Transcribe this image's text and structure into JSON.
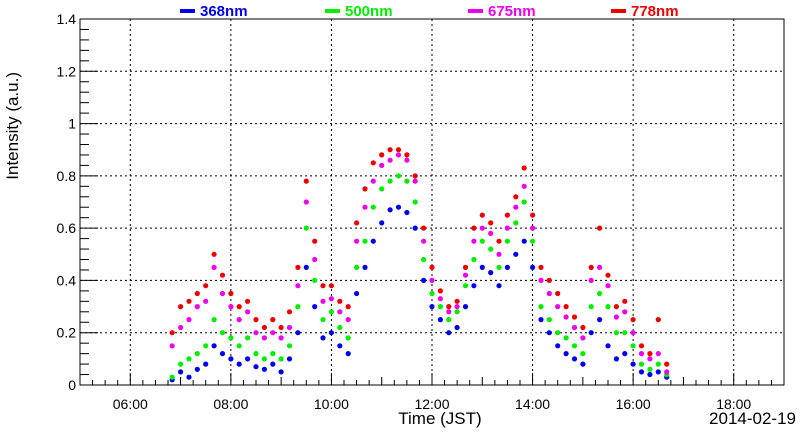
{
  "chart_data": {
    "type": "scatter",
    "xlabel": "Time (JST)",
    "ylabel": "Intensity (a.u.)",
    "date_label": "2014-02-19",
    "xlim": [
      "05:00",
      "19:00"
    ],
    "ylim": [
      0,
      1.4
    ],
    "x_ticks": [
      "06:00",
      "08:00",
      "10:00",
      "12:00",
      "14:00",
      "16:00",
      "18:00"
    ],
    "y_ticks": [
      "0",
      "0.2",
      "0.4",
      "0.6",
      "0.8",
      "1",
      "1.2",
      "1.4"
    ],
    "grid": true,
    "legend_position": "top",
    "series": [
      {
        "name": "368nm",
        "color": "#0000ee",
        "x": [
          "06:50",
          "07:00",
          "07:10",
          "07:20",
          "07:30",
          "07:40",
          "07:50",
          "08:00",
          "08:10",
          "08:20",
          "08:30",
          "08:40",
          "08:50",
          "09:00",
          "09:10",
          "09:20",
          "09:30",
          "09:40",
          "09:50",
          "10:00",
          "10:10",
          "10:20",
          "10:30",
          "10:40",
          "10:50",
          "11:00",
          "11:10",
          "11:20",
          "11:30",
          "11:40",
          "11:50",
          "12:00",
          "12:10",
          "12:20",
          "12:30",
          "12:40",
          "12:50",
          "13:00",
          "13:10",
          "13:20",
          "13:30",
          "13:40",
          "13:50",
          "14:00",
          "14:10",
          "14:20",
          "14:30",
          "14:40",
          "14:50",
          "15:00",
          "15:10",
          "15:20",
          "15:30",
          "15:40",
          "15:50",
          "16:00",
          "16:10",
          "16:20",
          "16:30",
          "16:40"
        ],
        "values": [
          0.02,
          0.05,
          0.03,
          0.06,
          0.08,
          0.15,
          0.12,
          0.1,
          0.08,
          0.1,
          0.07,
          0.06,
          0.08,
          0.05,
          0.1,
          0.2,
          0.45,
          0.3,
          0.18,
          0.2,
          0.15,
          0.12,
          0.35,
          0.45,
          0.55,
          0.62,
          0.67,
          0.68,
          0.66,
          0.6,
          0.4,
          0.3,
          0.25,
          0.2,
          0.22,
          0.3,
          0.38,
          0.45,
          0.43,
          0.38,
          0.45,
          0.5,
          0.55,
          0.45,
          0.25,
          0.2,
          0.15,
          0.12,
          0.1,
          0.08,
          0.2,
          0.25,
          0.15,
          0.1,
          0.12,
          0.08,
          0.05,
          0.04,
          0.05,
          0.03
        ]
      },
      {
        "name": "500nm",
        "color": "#00ee00",
        "x": [
          "06:50",
          "07:00",
          "07:10",
          "07:20",
          "07:30",
          "07:40",
          "07:50",
          "08:00",
          "08:10",
          "08:20",
          "08:30",
          "08:40",
          "08:50",
          "09:00",
          "09:10",
          "09:20",
          "09:30",
          "09:40",
          "09:50",
          "10:00",
          "10:10",
          "10:20",
          "10:30",
          "10:40",
          "10:50",
          "11:00",
          "11:10",
          "11:20",
          "11:30",
          "11:40",
          "11:50",
          "12:00",
          "12:10",
          "12:20",
          "12:30",
          "12:40",
          "12:50",
          "13:00",
          "13:10",
          "13:20",
          "13:30",
          "13:40",
          "13:50",
          "14:00",
          "14:10",
          "14:20",
          "14:30",
          "14:40",
          "14:50",
          "15:00",
          "15:10",
          "15:20",
          "15:30",
          "15:40",
          "15:50",
          "16:00",
          "16:10",
          "16:20",
          "16:30",
          "16:40"
        ],
        "values": [
          0.03,
          0.08,
          0.1,
          0.12,
          0.15,
          0.25,
          0.2,
          0.18,
          0.15,
          0.18,
          0.12,
          0.1,
          0.12,
          0.1,
          0.15,
          0.3,
          0.6,
          0.4,
          0.25,
          0.28,
          0.22,
          0.18,
          0.45,
          0.55,
          0.68,
          0.75,
          0.78,
          0.8,
          0.78,
          0.7,
          0.48,
          0.35,
          0.3,
          0.25,
          0.28,
          0.38,
          0.48,
          0.55,
          0.52,
          0.45,
          0.55,
          0.62,
          0.7,
          0.55,
          0.3,
          0.25,
          0.2,
          0.18,
          0.15,
          0.12,
          0.3,
          0.35,
          0.3,
          0.2,
          0.2,
          0.15,
          0.08,
          0.06,
          0.08,
          0.04
        ]
      },
      {
        "name": "675nm",
        "color": "#ee00ee",
        "x": [
          "06:50",
          "07:00",
          "07:10",
          "07:20",
          "07:30",
          "07:40",
          "07:50",
          "08:00",
          "08:10",
          "08:20",
          "08:30",
          "08:40",
          "08:50",
          "09:00",
          "09:10",
          "09:20",
          "09:30",
          "09:40",
          "09:50",
          "10:00",
          "10:10",
          "10:20",
          "10:30",
          "10:40",
          "10:50",
          "11:00",
          "11:10",
          "11:20",
          "11:30",
          "11:40",
          "11:50",
          "12:00",
          "12:10",
          "12:20",
          "12:30",
          "12:40",
          "12:50",
          "13:00",
          "13:10",
          "13:20",
          "13:30",
          "13:40",
          "13:50",
          "14:00",
          "14:10",
          "14:20",
          "14:30",
          "14:40",
          "14:50",
          "15:00",
          "15:10",
          "15:20",
          "15:30",
          "15:40",
          "15:50",
          "16:00",
          "16:10",
          "16:20",
          "16:30",
          "16:40"
        ],
        "values": [
          0.15,
          0.22,
          0.25,
          0.3,
          0.32,
          0.45,
          0.35,
          0.3,
          0.25,
          0.28,
          0.2,
          0.18,
          0.2,
          0.18,
          0.22,
          0.38,
          0.7,
          0.48,
          0.32,
          0.33,
          0.28,
          0.25,
          0.55,
          0.68,
          0.78,
          0.84,
          0.86,
          0.88,
          0.86,
          0.78,
          0.55,
          0.4,
          0.33,
          0.28,
          0.3,
          0.42,
          0.55,
          0.6,
          0.58,
          0.5,
          0.6,
          0.68,
          0.76,
          0.6,
          0.4,
          0.35,
          0.3,
          0.26,
          0.22,
          0.18,
          0.4,
          0.45,
          0.38,
          0.26,
          0.28,
          0.2,
          0.12,
          0.1,
          0.12,
          0.05
        ]
      },
      {
        "name": "778nm",
        "color": "#ee0000",
        "x": [
          "06:50",
          "07:00",
          "07:10",
          "07:20",
          "07:30",
          "07:40",
          "07:50",
          "08:00",
          "08:10",
          "08:20",
          "08:30",
          "08:40",
          "08:50",
          "09:00",
          "09:10",
          "09:20",
          "09:30",
          "09:40",
          "09:50",
          "10:00",
          "10:10",
          "10:20",
          "10:30",
          "10:40",
          "10:50",
          "11:00",
          "11:10",
          "11:20",
          "11:30",
          "11:40",
          "11:50",
          "12:00",
          "12:10",
          "12:20",
          "12:30",
          "12:40",
          "12:50",
          "13:00",
          "13:10",
          "13:20",
          "13:30",
          "13:40",
          "13:50",
          "14:00",
          "14:10",
          "14:20",
          "14:30",
          "14:40",
          "14:50",
          "15:00",
          "15:10",
          "15:20",
          "15:30",
          "15:40",
          "15:50",
          "16:00",
          "16:10",
          "16:20",
          "16:30",
          "16:40"
        ],
        "values": [
          0.2,
          0.3,
          0.32,
          0.35,
          0.38,
          0.5,
          0.42,
          0.35,
          0.3,
          0.32,
          0.25,
          0.22,
          0.25,
          0.22,
          0.28,
          0.45,
          0.78,
          0.55,
          0.38,
          0.38,
          0.32,
          0.3,
          0.62,
          0.75,
          0.85,
          0.88,
          0.9,
          0.9,
          0.88,
          0.8,
          0.6,
          0.45,
          0.36,
          0.3,
          0.32,
          0.45,
          0.6,
          0.65,
          0.62,
          0.55,
          0.65,
          0.72,
          0.83,
          0.65,
          0.45,
          0.4,
          0.35,
          0.3,
          0.26,
          0.22,
          0.45,
          0.6,
          0.42,
          0.3,
          0.32,
          0.25,
          0.15,
          0.12,
          0.25,
          0.08
        ]
      }
    ]
  }
}
